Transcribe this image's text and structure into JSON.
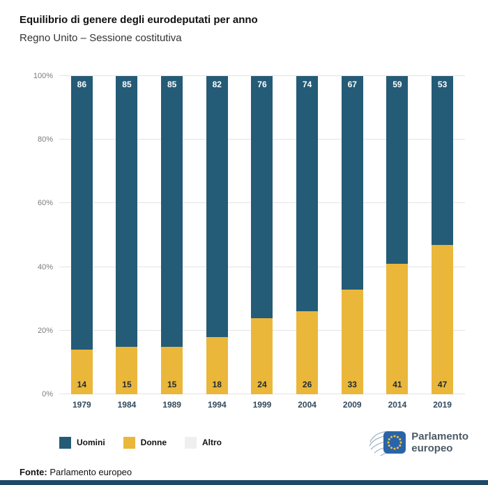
{
  "header": {
    "title": "Equilibrio di genere degli eurodeputati per anno",
    "subtitle": "Regno Unito – Sessione costitutiva"
  },
  "chart_data": {
    "type": "bar",
    "stacked": true,
    "unit": "%",
    "title": "Equilibrio di genere degli eurodeputati per anno",
    "subtitle": "Regno Unito – Sessione costitutiva",
    "categories": [
      "1979",
      "1984",
      "1989",
      "1994",
      "1999",
      "2004",
      "2009",
      "2014",
      "2019"
    ],
    "series": [
      {
        "name": "Uomini",
        "color": "#245B76",
        "label_color": "#FFFFFF",
        "values": [
          86,
          85,
          85,
          82,
          76,
          74,
          67,
          59,
          53
        ]
      },
      {
        "name": "Donne",
        "color": "#EAB73B",
        "label_color": "#1C2B33",
        "values": [
          14,
          15,
          15,
          18,
          24,
          26,
          33,
          41,
          47
        ]
      },
      {
        "name": "Altro",
        "color": "#EFEFEF",
        "label_color": "#333333",
        "values": [
          0,
          0,
          0,
          0,
          0,
          0,
          0,
          0,
          0
        ]
      }
    ],
    "xlabel": "",
    "ylabel": "",
    "ylim": [
      0,
      100
    ],
    "y_ticks": [
      "0%",
      "20%",
      "40%",
      "60%",
      "80%",
      "100%"
    ],
    "grid": true,
    "legend_position": "bottom-left"
  },
  "footer": {
    "source_label": "Fonte:",
    "source_text": "Parlamento europeo"
  },
  "logo": {
    "line1": "Parlamento",
    "line2": "europeo"
  }
}
